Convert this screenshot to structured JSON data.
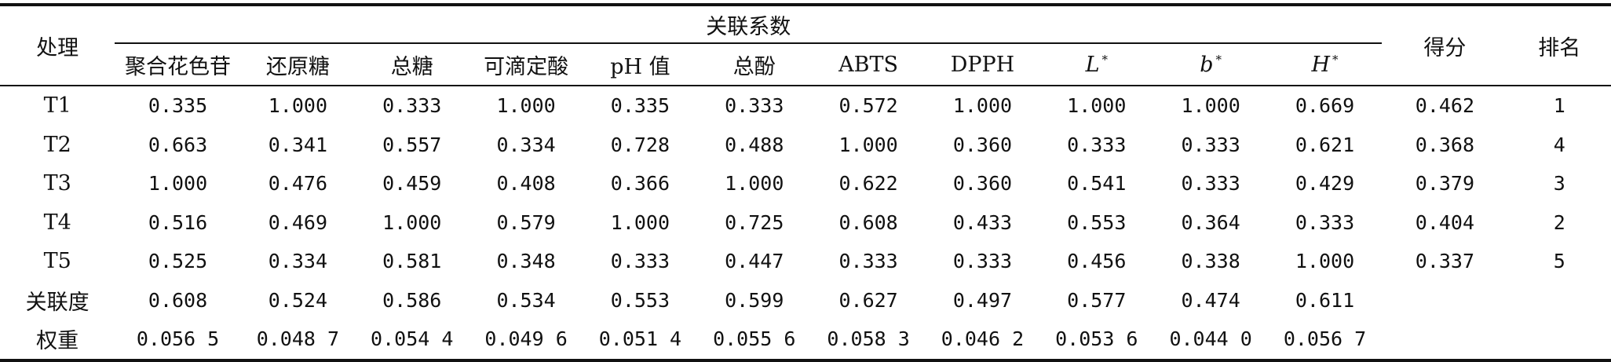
{
  "table": {
    "header_group": "关联系数",
    "col_treatment": "处理",
    "col_score": "得分",
    "col_rank": "排名",
    "columns": [
      {
        "label": "聚合花色苷",
        "italic": false,
        "sup": ""
      },
      {
        "label": "还原糖",
        "italic": false,
        "sup": ""
      },
      {
        "label": "总糖",
        "italic": false,
        "sup": ""
      },
      {
        "label": "可滴定酸",
        "italic": false,
        "sup": ""
      },
      {
        "label": "pH 值",
        "italic": false,
        "sup": ""
      },
      {
        "label": "总酚",
        "italic": false,
        "sup": ""
      },
      {
        "label": "ABTS",
        "italic": false,
        "sup": ""
      },
      {
        "label": "DPPH",
        "italic": false,
        "sup": ""
      },
      {
        "label": "L",
        "italic": true,
        "sup": "*"
      },
      {
        "label": "b",
        "italic": true,
        "sup": "*"
      },
      {
        "label": "H",
        "italic": true,
        "sup": "*"
      }
    ],
    "rows": [
      {
        "name": "T1",
        "values": [
          "0.335",
          "1.000",
          "0.333",
          "1.000",
          "0.335",
          "0.333",
          "0.572",
          "1.000",
          "1.000",
          "1.000",
          "0.669"
        ],
        "score": "0.462",
        "rank": "1"
      },
      {
        "name": "T2",
        "values": [
          "0.663",
          "0.341",
          "0.557",
          "0.334",
          "0.728",
          "0.488",
          "1.000",
          "0.360",
          "0.333",
          "0.333",
          "0.621"
        ],
        "score": "0.368",
        "rank": "4"
      },
      {
        "name": "T3",
        "values": [
          "1.000",
          "0.476",
          "0.459",
          "0.408",
          "0.366",
          "1.000",
          "0.622",
          "0.360",
          "0.541",
          "0.333",
          "0.429"
        ],
        "score": "0.379",
        "rank": "3"
      },
      {
        "name": "T4",
        "values": [
          "0.516",
          "0.469",
          "1.000",
          "0.579",
          "1.000",
          "0.725",
          "0.608",
          "0.433",
          "0.553",
          "0.364",
          "0.333"
        ],
        "score": "0.404",
        "rank": "2"
      },
      {
        "name": "T5",
        "values": [
          "0.525",
          "0.334",
          "0.581",
          "0.348",
          "0.333",
          "0.447",
          "0.333",
          "0.333",
          "0.456",
          "0.338",
          "1.000"
        ],
        "score": "0.337",
        "rank": "5"
      },
      {
        "name": "关联度",
        "values": [
          "0.608",
          "0.524",
          "0.586",
          "0.534",
          "0.553",
          "0.599",
          "0.627",
          "0.497",
          "0.577",
          "0.474",
          "0.611"
        ],
        "score": "",
        "rank": ""
      },
      {
        "name": "权重",
        "values": [
          "0.056 5",
          "0.048 7",
          "0.054 4",
          "0.049 6",
          "0.051 4",
          "0.055 6",
          "0.058 3",
          "0.046 2",
          "0.053 6",
          "0.044 0",
          "0.056 7"
        ],
        "score": "",
        "rank": ""
      }
    ]
  }
}
